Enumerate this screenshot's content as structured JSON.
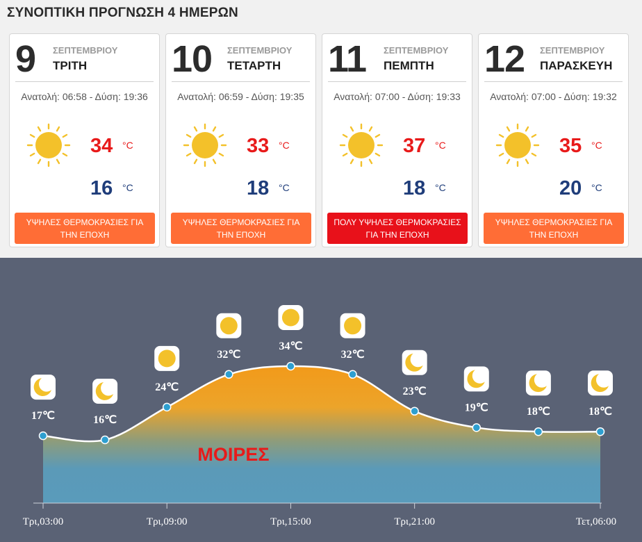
{
  "title": "ΣΥΝΟΠΤΙΚΗ ΠΡΟΓΝΩΣΗ 4 ΗΜΕΡΩΝ",
  "days": [
    {
      "day": "9",
      "month": "ΣΕΠΤΕΜΒΡΙΟΥ",
      "weekday": "ΤΡΙΤΗ",
      "sun": "Ανατολή: 06:58 - Δύση: 19:36",
      "icon": "sun-icon",
      "max": "34",
      "min": "16",
      "unit": "°C",
      "warning": "ΥΨΗΛΕΣ ΘΕΡΜΟΚΡΑΣΙΕΣ ΓΙΑ ΤΗΝ ΕΠΟΧΗ",
      "warning_color": "#ff6d36"
    },
    {
      "day": "10",
      "month": "ΣΕΠΤΕΜΒΡΙΟΥ",
      "weekday": "ΤΕΤΑΡΤΗ",
      "sun": "Ανατολή: 06:59 - Δύση: 19:35",
      "icon": "sun-icon",
      "max": "33",
      "min": "18",
      "unit": "°C",
      "warning": "ΥΨΗΛΕΣ ΘΕΡΜΟΚΡΑΣΙΕΣ ΓΙΑ ΤΗΝ ΕΠΟΧΗ",
      "warning_color": "#ff6d36"
    },
    {
      "day": "11",
      "month": "ΣΕΠΤΕΜΒΡΙΟΥ",
      "weekday": "ΠΕΜΠΤΗ",
      "sun": "Ανατολή: 07:00 - Δύση: 19:33",
      "icon": "sun-icon",
      "max": "37",
      "min": "18",
      "unit": "°C",
      "warning": "ΠΟΛΥ ΥΨΗΛΕΣ ΘΕΡΜΟΚΡΑΣΙΕΣ ΓΙΑ ΤΗΝ ΕΠΟΧΗ",
      "warning_color": "#e8111a"
    },
    {
      "day": "12",
      "month": "ΣΕΠΤΕΜΒΡΙΟΥ",
      "weekday": "ΠΑΡΑΣΚΕΥΗ",
      "sun": "Ανατολή: 07:00 - Δύση: 19:32",
      "icon": "sun-icon",
      "max": "35",
      "min": "20",
      "unit": "°C",
      "warning": "ΥΨΗΛΕΣ ΘΕΡΜΟΚΡΑΣΙΕΣ ΓΙΑ ΤΗΝ ΕΠΟΧΗ",
      "warning_color": "#ff6d36"
    }
  ],
  "colors": {
    "max_temp": "#e81a1a",
    "min_temp": "#1f3d7a",
    "chart_bg": "#5a6275",
    "sun": "#f3c12a",
    "ylabel": "#e81a1a"
  },
  "chart_data": {
    "type": "area",
    "ylabel": "ΜΟΙΡΕΣ",
    "unit": "℃",
    "ticks": [
      "Τρι,03:00",
      "Τρι,09:00",
      "Τρι,15:00",
      "Τρι,21:00",
      "Τετ,06:00"
    ],
    "points": [
      {
        "time": "Τρι,03:00",
        "temp": 17,
        "icon": "moon-icon"
      },
      {
        "time": "Τρι,06:00",
        "temp": 16,
        "icon": "moon-icon"
      },
      {
        "time": "Τρι,09:00",
        "temp": 24,
        "icon": "sun-icon"
      },
      {
        "time": "Τρι,12:00",
        "temp": 32,
        "icon": "sun-icon"
      },
      {
        "time": "Τρι,15:00",
        "temp": 34,
        "icon": "sun-icon"
      },
      {
        "time": "Τρι,18:00",
        "temp": 32,
        "icon": "sun-icon"
      },
      {
        "time": "Τρι,21:00",
        "temp": 23,
        "icon": "moon-icon"
      },
      {
        "time": "Τετ,00:00",
        "temp": 19,
        "icon": "moon-icon"
      },
      {
        "time": "Τετ,03:00",
        "temp": 18,
        "icon": "moon-icon"
      },
      {
        "time": "Τετ,06:00",
        "temp": 18,
        "icon": "moon-icon"
      }
    ]
  }
}
